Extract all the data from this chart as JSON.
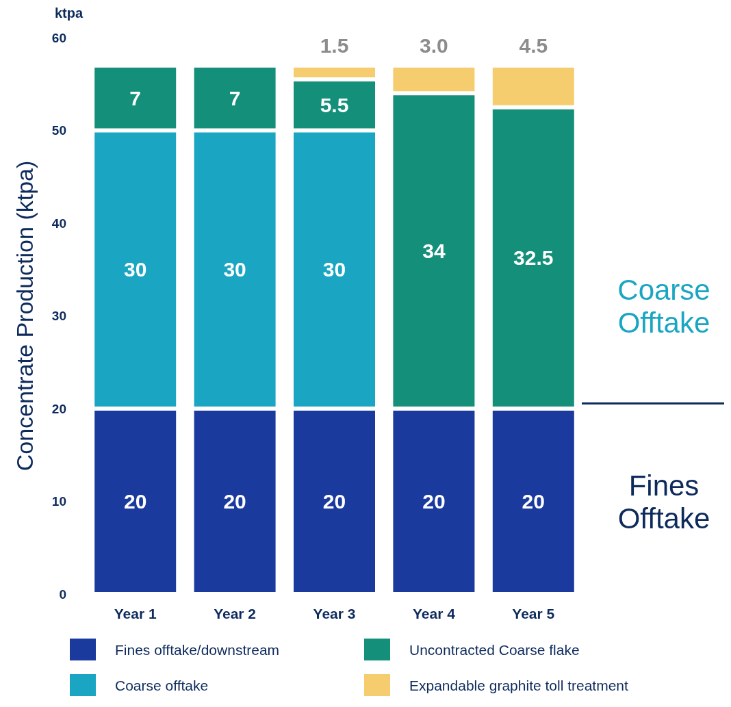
{
  "chart_data": {
    "type": "bar",
    "stacked": true,
    "ylabel": "Concentrate Production (ktpa)",
    "categories": [
      "Year 1",
      "Year 2",
      "Year 3",
      "Year 4",
      "Year 5"
    ],
    "ylim": [
      0,
      60
    ],
    "yticks": [
      0,
      10,
      20,
      30,
      40,
      50,
      60
    ],
    "grid": false,
    "legend": "bottom",
    "annotations": [
      "ktpa",
      "Coarse Offtake",
      "Fines Offtake"
    ],
    "series": [
      {
        "name": "Fines offtake/downstream",
        "color": "#1a3a9e",
        "values": [
          20,
          20,
          20,
          20,
          20
        ],
        "value_labels": [
          "20",
          "20",
          "20",
          "20",
          "20"
        ]
      },
      {
        "name": "Coarse offtake",
        "color": "#1aa6c2",
        "values": [
          30,
          30,
          30,
          null,
          null
        ],
        "value_labels": [
          "30",
          "30",
          "30",
          null,
          null
        ]
      },
      {
        "name": "Uncontracted Coarse flake",
        "color": "#148f7a",
        "values": [
          7,
          7,
          5.5,
          34,
          32.5
        ],
        "value_labels": [
          "7",
          "7",
          "5.5",
          "34",
          "32.5"
        ]
      },
      {
        "name": "Expandable graphite toll treatment",
        "color": "#f5cd6e",
        "values": [
          null,
          null,
          1.5,
          3.0,
          4.5
        ],
        "value_labels": [
          null,
          null,
          "1.5",
          "3.0",
          "4.5"
        ]
      }
    ]
  }
}
